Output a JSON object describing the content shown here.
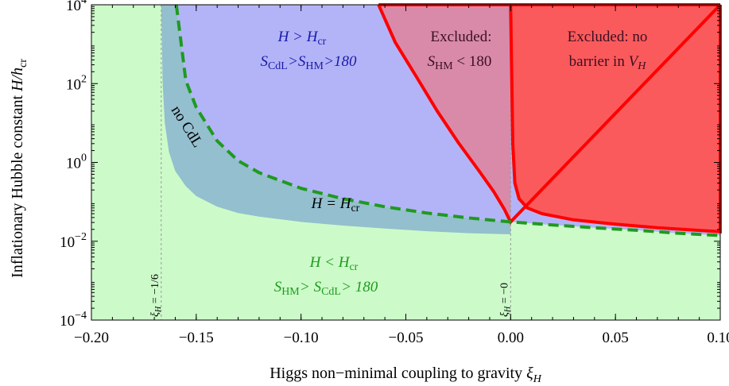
{
  "chart_data": {
    "type": "area",
    "title": "",
    "xlabel": "Higgs non−minimal coupling to gravity ",
    "xlabel_symbol": "ξ",
    "xlabel_sub": "H",
    "ylabel": "Inflationary Hubble constant ",
    "ylabel_symbol": "H/h",
    "ylabel_sub": "cr",
    "xlim": [
      -0.2,
      0.1
    ],
    "ylim": [
      0.0001,
      10000
    ],
    "y_scale": "log",
    "grid": false,
    "x_ticks": [
      "−0.20",
      "−0.15",
      "−0.10",
      "−0.05",
      "0.00",
      "0.05",
      "0.10"
    ],
    "x_tick_values": [
      -0.2,
      -0.15,
      -0.1,
      -0.05,
      0.0,
      0.05,
      0.1
    ],
    "y_ticks": [
      {
        "base": "10",
        "exp": "−4",
        "value": 0.0001
      },
      {
        "base": "10",
        "exp": "−2",
        "value": 0.01
      },
      {
        "base": "10",
        "exp": "0",
        "value": 1
      },
      {
        "base": "10",
        "exp": "2",
        "value": 100
      },
      {
        "base": "10",
        "exp": "4",
        "value": 10000
      }
    ],
    "colors": {
      "green_region": "#ccfbc9",
      "blue_region": "#b3b4f8",
      "teal_region": "#94bfce",
      "pink_region": "#d98aa9",
      "red_region": "#fb5a5c",
      "red_line": "#ff0000",
      "green_dash": "#1f9a1f",
      "blue_text": "#1a1aa6",
      "green_text": "#1f9a1f"
    },
    "series": [
      {
        "role": "critical_curve",
        "x": [
          -0.1595,
          -0.155,
          -0.15,
          -0.14,
          -0.13,
          -0.12,
          -0.1,
          -0.08,
          -0.06,
          -0.04,
          -0.02,
          0.0,
          0.02,
          0.04,
          0.06,
          0.08,
          0.1
        ],
        "y": [
          10000,
          120,
          25,
          3.5,
          1.1,
          0.55,
          0.22,
          0.12,
          0.075,
          0.052,
          0.039,
          0.031,
          0.026,
          0.022,
          0.019,
          0.016,
          0.014
        ]
      },
      {
        "role": "no_cdl_lower_boundary",
        "x": [
          -0.1667,
          -0.166,
          -0.165,
          -0.163,
          -0.16,
          -0.155,
          -0.15,
          -0.14,
          -0.13,
          -0.12,
          -0.1,
          -0.08,
          -0.06,
          -0.04,
          -0.02,
          0.0
        ],
        "y": [
          10000,
          100,
          10,
          1.8,
          0.6,
          0.25,
          0.14,
          0.075,
          0.052,
          0.042,
          0.031,
          0.025,
          0.021,
          0.018,
          0.016,
          0.015
        ]
      },
      {
        "role": "hm_excluded_boundary",
        "x": [
          -0.063,
          -0.055,
          -0.045,
          -0.035,
          -0.025,
          -0.015,
          -0.008,
          -0.003,
          0.0
        ],
        "y": [
          10000,
          1100,
          150,
          20,
          3.2,
          0.6,
          0.18,
          0.065,
          0.031
        ]
      },
      {
        "role": "no_barrier_boundary",
        "x": [
          0.0,
          0.001,
          0.002,
          0.004,
          0.008,
          0.015,
          0.03,
          0.05,
          0.07,
          0.1
        ],
        "y": [
          10000,
          3,
          0.3,
          0.12,
          0.07,
          0.05,
          0.035,
          0.027,
          0.022,
          0.0175
        ]
      }
    ],
    "vertical_guides": [
      {
        "x": -0.1667,
        "label_base": "ξ",
        "label_sub": "H",
        "label_rest": " = −1/6"
      },
      {
        "x": 0.0,
        "label_base": "ξ",
        "label_sub": "H",
        "label_rest": " = −0"
      }
    ],
    "annotations": {
      "blue_line1_main": "H > H",
      "blue_line1_sub": "cr",
      "blue_line2": [
        {
          "t": "S",
          "s": "CdL"
        },
        {
          "t": ">S",
          "s": "HM"
        },
        {
          "t": ">180",
          "s": ""
        }
      ],
      "excluded_hm_line1": "Excluded:",
      "excluded_hm_line2_main": "S",
      "excluded_hm_line2_sub": "HM",
      "excluded_hm_line2_rest": " < 180",
      "excluded_nb_line1": "Excluded: no",
      "excluded_nb_line2": "barrier in ",
      "excluded_nb_line2_sym": "V",
      "excluded_nb_line2_sub": "H",
      "no_cdl": "no CdL",
      "hcr_main": "H = H",
      "hcr_sub": "cr",
      "green_line1_main": "H < H",
      "green_line1_sub": "cr",
      "green_line2": [
        {
          "t": "S",
          "s": "HM"
        },
        {
          "t": " > S",
          "s": "CdL"
        },
        {
          "t": " > 180",
          "s": ""
        }
      ]
    }
  }
}
